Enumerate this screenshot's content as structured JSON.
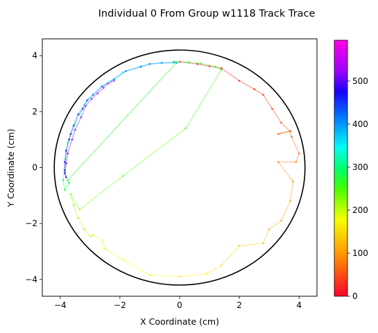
{
  "chart_data": {
    "type": "scatter",
    "title": "Individual 0 From Group w1118 Track Trace",
    "xlabel": "X Coordinate (cm)",
    "ylabel": "Y Coordinate (cm)",
    "xlim": [
      -4.6,
      4.6
    ],
    "ylim": [
      -4.6,
      4.6
    ],
    "x_ticks": [
      -4,
      -2,
      0,
      2,
      4
    ],
    "x_tick_labels": [
      "−4",
      "−2",
      "0",
      "2",
      "4"
    ],
    "y_ticks": [
      -4,
      -2,
      0,
      2,
      4
    ],
    "y_tick_labels": [
      "−4",
      "−2",
      "0",
      "2",
      "4"
    ],
    "arena": {
      "shape": "circle",
      "center": [
        0,
        0
      ],
      "radius": 4.2,
      "color": "#000000"
    },
    "colorbar": {
      "colormap": "gist_rainbow",
      "min": 0,
      "max": 595,
      "ticks": [
        0,
        100,
        200,
        300,
        400,
        500
      ],
      "tick_labels": [
        "0",
        "100",
        "200",
        "300",
        "400",
        "500"
      ]
    },
    "series": [
      {
        "type": "trajectory",
        "color_by": "frame",
        "points": [
          [
            0,
            3.78,
            0
          ],
          [
            0.6,
            3.7,
            6
          ],
          [
            1.0,
            3.62,
            12
          ],
          [
            1.4,
            3.55,
            18
          ],
          [
            2.0,
            3.1,
            24
          ],
          [
            2.5,
            2.8,
            30
          ],
          [
            2.8,
            2.6,
            36
          ],
          [
            3.1,
            2.1,
            42
          ],
          [
            3.4,
            1.6,
            48
          ],
          [
            3.7,
            1.3,
            54
          ],
          [
            3.3,
            1.2,
            56
          ],
          [
            3.7,
            1.3,
            58
          ],
          [
            3.75,
            1.1,
            60
          ],
          [
            4.0,
            0.5,
            66
          ],
          [
            3.9,
            0.2,
            72
          ],
          [
            3.3,
            0.2,
            78
          ],
          [
            3.8,
            -0.5,
            84
          ],
          [
            3.7,
            -1.2,
            90
          ],
          [
            3.4,
            -1.9,
            96
          ],
          [
            3.0,
            -2.2,
            102
          ],
          [
            2.8,
            -2.7,
            108
          ],
          [
            2.0,
            -2.8,
            114
          ],
          [
            1.4,
            -3.5,
            120
          ],
          [
            0.9,
            -3.8,
            126
          ],
          [
            0,
            -3.9,
            132
          ],
          [
            -1.0,
            -3.85,
            138
          ],
          [
            -1.9,
            -3.3,
            144
          ],
          [
            -2.5,
            -2.9,
            150
          ],
          [
            -2.6,
            -2.6,
            155
          ],
          [
            -2.9,
            -2.4,
            160
          ],
          [
            -3.0,
            -2.45,
            165
          ],
          [
            -3.2,
            -2.2,
            172
          ],
          [
            -3.4,
            -1.8,
            180
          ],
          [
            -3.55,
            -1.35,
            188
          ],
          [
            -3.65,
            -0.95,
            196
          ],
          [
            -3.35,
            -1.5,
            204
          ],
          [
            -1.9,
            -0.3,
            214
          ],
          [
            0.2,
            1.4,
            224
          ],
          [
            1.4,
            3.5,
            234
          ],
          [
            1.2,
            3.6,
            240
          ],
          [
            0.7,
            3.72,
            246
          ],
          [
            0.3,
            3.76,
            252
          ],
          [
            -0.2,
            3.78,
            258
          ],
          [
            -0.1,
            3.76,
            262
          ],
          [
            -3.75,
            -0.45,
            266
          ],
          [
            -3.7,
            -0.55,
            270
          ],
          [
            -3.85,
            -0.8,
            276
          ],
          [
            -3.9,
            -0.45,
            282
          ],
          [
            -3.85,
            -0.1,
            290
          ],
          [
            -3.82,
            0.3,
            300
          ],
          [
            -3.8,
            0.6,
            310
          ],
          [
            -3.75,
            0.9,
            320
          ],
          [
            -3.65,
            1.2,
            330
          ],
          [
            -3.5,
            1.55,
            340
          ],
          [
            -3.35,
            1.9,
            350
          ],
          [
            -3.2,
            2.25,
            360
          ],
          [
            -3.05,
            2.45,
            366
          ],
          [
            -2.9,
            2.6,
            372
          ],
          [
            -2.6,
            2.9,
            378
          ],
          [
            -2.3,
            3.1,
            384
          ],
          [
            -1.9,
            3.4,
            390
          ],
          [
            -1.3,
            3.62,
            396
          ],
          [
            -1.0,
            3.7,
            402
          ],
          [
            -0.6,
            3.74,
            408
          ],
          [
            -0.2,
            3.76,
            414
          ],
          [
            -0.1,
            3.74,
            418
          ],
          [
            -0.6,
            3.74,
            424
          ],
          [
            -1.0,
            3.7,
            430
          ],
          [
            -1.3,
            3.6,
            436
          ],
          [
            -1.8,
            3.45,
            442
          ],
          [
            -2.2,
            3.15,
            448
          ],
          [
            -2.6,
            2.9,
            454
          ],
          [
            -2.9,
            2.6,
            460
          ],
          [
            -3.1,
            2.4,
            466
          ],
          [
            -3.25,
            2.1,
            472
          ],
          [
            -3.4,
            1.9,
            478
          ],
          [
            -3.55,
            1.5,
            484
          ],
          [
            -3.65,
            1.2,
            490
          ],
          [
            -3.7,
            1.0,
            496
          ],
          [
            -3.8,
            0.6,
            502
          ],
          [
            -3.85,
            0.2,
            508
          ],
          [
            -3.85,
            -0.1,
            514
          ],
          [
            -3.8,
            -0.35,
            520
          ],
          [
            -3.85,
            -0.2,
            526
          ],
          [
            -3.8,
            0.15,
            532
          ],
          [
            -3.75,
            0.5,
            538
          ],
          [
            -3.6,
            1.0,
            544
          ],
          [
            -3.5,
            1.35,
            550
          ],
          [
            -3.3,
            1.8,
            556
          ],
          [
            -3.15,
            2.2,
            562
          ],
          [
            -2.95,
            2.45,
            568
          ],
          [
            -2.75,
            2.65,
            574
          ],
          [
            -2.55,
            2.85,
            580
          ],
          [
            -2.4,
            3.0,
            586
          ],
          [
            -2.2,
            3.1,
            590
          ]
        ]
      }
    ]
  }
}
